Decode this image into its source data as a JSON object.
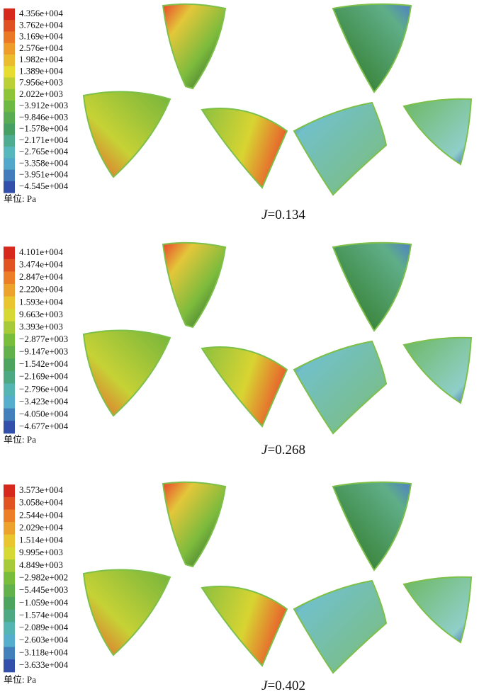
{
  "panels": [
    {
      "colorbar": [
        "4.356e+004",
        "3.762e+004",
        "3.169e+004",
        "2.576e+004",
        "1.982e+004",
        "1.389e+004",
        "7.956e+003",
        "2.022e+003",
        "−3.912e+003",
        "−9.846e+003",
        "−1.578e+004",
        "−2.171e+004",
        "−2.765e+004",
        "−3.358e+004",
        "−3.951e+004",
        "−4.545e+004"
      ],
      "unit": "单位: Pa",
      "caption": {
        "var": "J",
        "text": "=0.134"
      }
    },
    {
      "colorbar": [
        "4.101e+004",
        "3.474e+004",
        "2.847e+004",
        "2.220e+004",
        "1.593e+004",
        "9.663e+003",
        "3.393e+003",
        "−2.877e+003",
        "−9.147e+003",
        "−1.542e+004",
        "−2.169e+004",
        "−2.796e+004",
        "−3.423e+004",
        "−4.050e+004",
        "−4.677e+004"
      ],
      "unit": "单位: Pa",
      "caption": {
        "var": "J",
        "text": "=0.268"
      }
    },
    {
      "colorbar": [
        "3.573e+004",
        "3.058e+004",
        "2.544e+004",
        "2.029e+004",
        "1.514e+004",
        "9.995e+003",
        "4.849e+003",
        "−2.982e+002",
        "−5.445e+003",
        "−1.059e+004",
        "−1.574e+004",
        "−2.089e+004",
        "−2.603e+004",
        "−3.118e+004",
        "−3.633e+004"
      ],
      "unit": "单位: Pa",
      "caption": {
        "var": "J",
        "text": "=0.402"
      }
    }
  ]
}
